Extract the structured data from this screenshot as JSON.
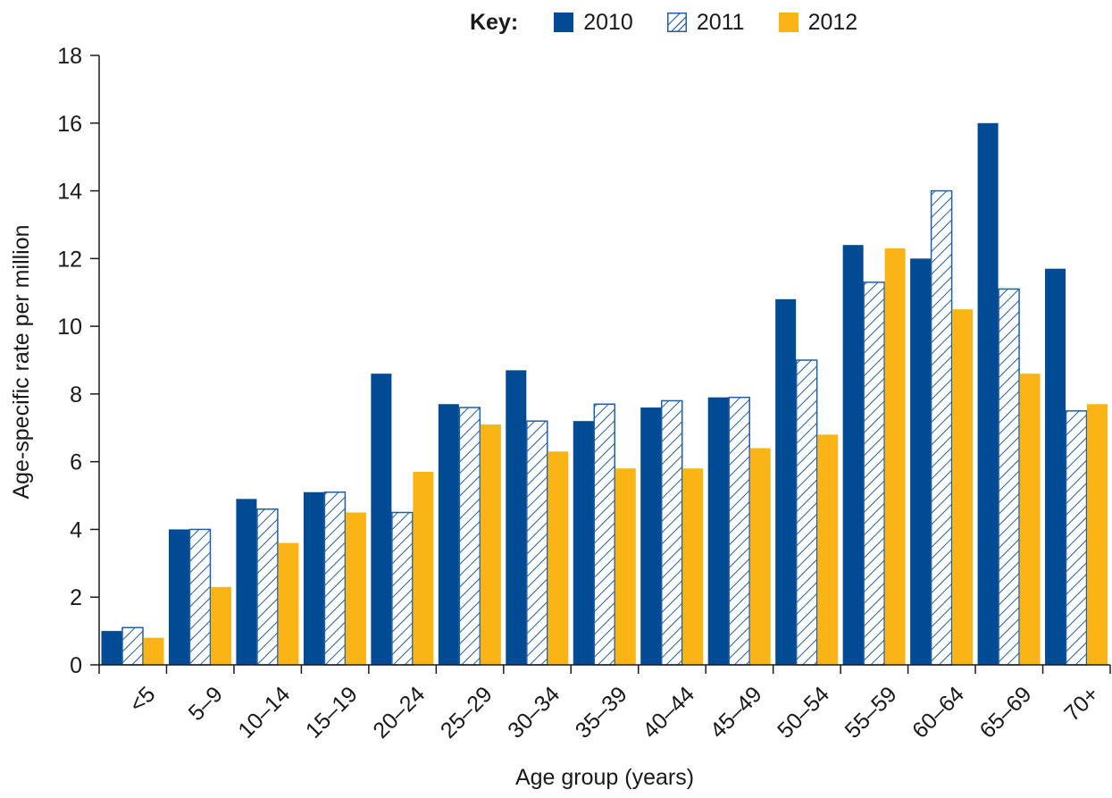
{
  "legend": {
    "title": "Key:"
  },
  "colors": {
    "s2010": "#004b93",
    "s2011_stroke": "#1f5fa8",
    "s2012": "#fbb415",
    "axis": "#1a1a1a"
  },
  "chart_data": {
    "type": "bar",
    "xlabel": "Age group (years)",
    "ylabel": "Age-specific rate per million",
    "ylim": [
      0,
      18
    ],
    "yticks": [
      0,
      2,
      4,
      6,
      8,
      10,
      12,
      14,
      16,
      18
    ],
    "categories": [
      "<5",
      "5–9",
      "10–14",
      "15–19",
      "20–24",
      "25–29",
      "30–34",
      "35–39",
      "40–44",
      "45–49",
      "50–54",
      "55–59",
      "60–64",
      "65–69",
      "70+"
    ],
    "series": [
      {
        "name": "2010",
        "pattern": "solid",
        "values": [
          1.0,
          4.0,
          4.9,
          5.1,
          8.6,
          7.7,
          8.7,
          7.2,
          7.6,
          7.9,
          10.8,
          12.4,
          12.0,
          16.0,
          11.7
        ]
      },
      {
        "name": "2011",
        "pattern": "hatched",
        "values": [
          1.1,
          4.0,
          4.6,
          5.1,
          4.5,
          7.6,
          7.2,
          7.7,
          7.8,
          7.9,
          9.0,
          11.3,
          14.0,
          11.1,
          7.5
        ]
      },
      {
        "name": "2012",
        "pattern": "solid",
        "values": [
          0.8,
          2.3,
          3.6,
          4.5,
          5.7,
          7.1,
          6.3,
          5.8,
          5.8,
          6.4,
          6.8,
          12.3,
          10.5,
          8.6,
          7.7
        ]
      }
    ],
    "grid": false,
    "legend_position": "top-right"
  }
}
